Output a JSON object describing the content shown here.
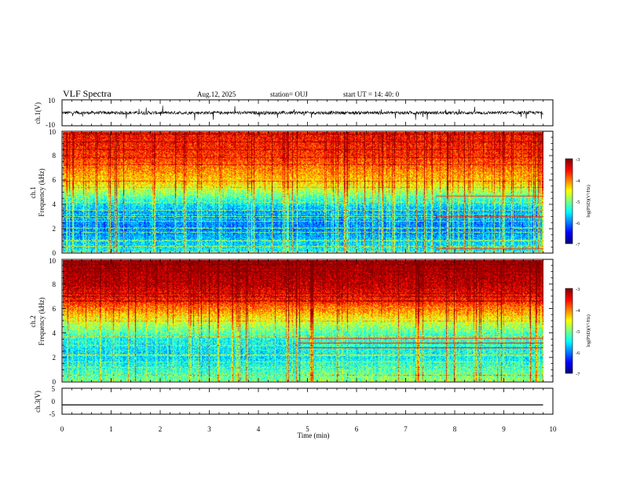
{
  "header": {
    "title": "VLF Spectra",
    "date": "Aug.12, 2025",
    "station": "station= OUJ",
    "start": "start  UT  =   14: 40: 0"
  },
  "chart_data": [
    {
      "type": "line",
      "name": "ch1-waveform",
      "ylabel": "ch.1(V)",
      "ylim": [
        -10,
        10
      ],
      "yticks": [
        "10",
        "-10"
      ],
      "xlim": [
        0,
        9.8
      ],
      "baseline": 0,
      "amplitude_typical": 2.5,
      "spike_max": 6
    },
    {
      "type": "heatmap",
      "name": "ch1-spectrogram",
      "ylabel_channel": "ch.1",
      "ylabel": "Frequency  (kHz)",
      "ylim": [
        0,
        10
      ],
      "yticks": [
        "0",
        "2",
        "4",
        "6",
        "8",
        "10"
      ],
      "xlim": [
        0,
        9.8
      ],
      "colorbar": {
        "range": [
          -7,
          -3
        ],
        "ticks": [
          "-3",
          "-4",
          "-5",
          "-6",
          "-7"
        ],
        "label": "log(PSD)(V²/Hz)"
      },
      "intensity_profile_by_freq_khz": [
        [
          0,
          -5.6
        ],
        [
          2,
          -6.2
        ],
        [
          3.5,
          -6.0
        ],
        [
          4.5,
          -5.4
        ],
        [
          6,
          -4.4
        ],
        [
          8,
          -3.8
        ],
        [
          10,
          -3.6
        ]
      ],
      "tonal_lines_khz": [
        0.5,
        1.0,
        1.7,
        2.0,
        2.6,
        3.0,
        3.5
      ],
      "late_lines": {
        "start_min": 7.6,
        "freqs_khz": [
          0.3,
          4.7,
          3.0
        ]
      }
    },
    {
      "type": "heatmap",
      "name": "ch2-spectrogram",
      "ylabel_channel": "ch.2",
      "ylabel": "Frequency  (kHz)",
      "ylim": [
        0,
        10
      ],
      "yticks": [
        "0",
        "2",
        "4",
        "6",
        "8",
        "10"
      ],
      "xlim": [
        0,
        9.8
      ],
      "colorbar": {
        "range": [
          -7,
          -3
        ],
        "ticks": [
          "-3",
          "-4",
          "-5",
          "-6",
          "-7"
        ],
        "label": "log(PSD)(V²/Hz)"
      },
      "intensity_profile_by_freq_khz": [
        [
          0,
          -5.2
        ],
        [
          2,
          -5.8
        ],
        [
          3.5,
          -5.6
        ],
        [
          5,
          -4.8
        ],
        [
          6.5,
          -3.8
        ],
        [
          8,
          -3.3
        ],
        [
          10,
          -3.1
        ]
      ],
      "tonal_lines_khz": [
        0.5,
        1.2,
        2.2,
        3.0,
        3.7
      ],
      "late_lines": {
        "start_min": 4.8,
        "freqs_khz": [
          3.2,
          2.8,
          3.6
        ]
      }
    },
    {
      "type": "line",
      "name": "ch3-waveform",
      "ylabel": "ch.3(V)",
      "ylim": [
        -5,
        5
      ],
      "yticks": [
        "5",
        "0",
        "-5"
      ],
      "xlim": [
        0,
        9.8
      ],
      "value": -1.4
    }
  ],
  "xaxis": {
    "label": "Time  (min)",
    "range": [
      0,
      10
    ],
    "ticks": [
      "0",
      "1",
      "2",
      "3",
      "4",
      "5",
      "6",
      "7",
      "8",
      "9",
      "10"
    ]
  }
}
